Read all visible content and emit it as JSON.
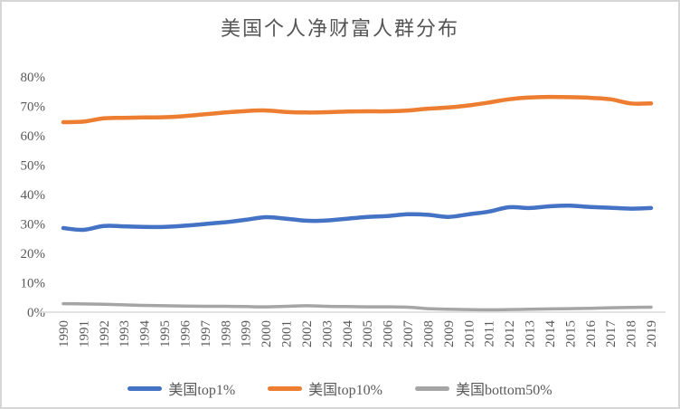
{
  "window": {
    "background": "#ffffff",
    "border_color": "#d6d6d6"
  },
  "chart_data": {
    "type": "line",
    "title": "美国个人净财富人群分布",
    "xlabel": "",
    "ylabel": "",
    "categories": [
      "1990",
      "1991",
      "1992",
      "1993",
      "1994",
      "1995",
      "1996",
      "1997",
      "1998",
      "1999",
      "2000",
      "2001",
      "2002",
      "2003",
      "2004",
      "2005",
      "2006",
      "2007",
      "2008",
      "2009",
      "2010",
      "2011",
      "2012",
      "2013",
      "2014",
      "2015",
      "2016",
      "2017",
      "2018",
      "2019"
    ],
    "series": [
      {
        "name": "美国top1%",
        "color": "#4472C4",
        "values": [
          28.6,
          28.0,
          29.3,
          29.2,
          29.0,
          29.0,
          29.4,
          30.0,
          30.6,
          31.4,
          32.3,
          31.8,
          31.1,
          31.2,
          31.8,
          32.4,
          32.7,
          33.3,
          33.1,
          32.4,
          33.3,
          34.2,
          35.7,
          35.4,
          36.0,
          36.2,
          35.8,
          35.5,
          35.2,
          35.4
        ]
      },
      {
        "name": "美国top10%",
        "color": "#ED7D31",
        "values": [
          64.6,
          64.8,
          65.9,
          66.1,
          66.2,
          66.3,
          66.7,
          67.3,
          67.9,
          68.4,
          68.6,
          68.1,
          67.9,
          68.0,
          68.2,
          68.3,
          68.3,
          68.6,
          69.2,
          69.6,
          70.3,
          71.3,
          72.4,
          73.0,
          73.2,
          73.1,
          72.9,
          72.4,
          71.0,
          71.0
        ]
      },
      {
        "name": "美国bottom50%",
        "color": "#A5A5A5",
        "values": [
          2.9,
          2.8,
          2.7,
          2.5,
          2.3,
          2.2,
          2.1,
          2.0,
          2.0,
          1.9,
          1.8,
          2.0,
          2.2,
          2.0,
          1.9,
          1.8,
          1.8,
          1.7,
          1.2,
          1.0,
          0.9,
          0.8,
          0.9,
          1.0,
          1.1,
          1.2,
          1.3,
          1.5,
          1.6,
          1.7
        ]
      }
    ],
    "ylim": [
      0,
      80
    ],
    "ytick_step": 10,
    "ytick_labels": [
      "0%",
      "10%",
      "20%",
      "30%",
      "40%",
      "50%",
      "60%",
      "70%",
      "80%"
    ],
    "grid": "none",
    "legend_position": "bottom",
    "axis_color": "#d9d9d9",
    "text_color": "#595959"
  }
}
